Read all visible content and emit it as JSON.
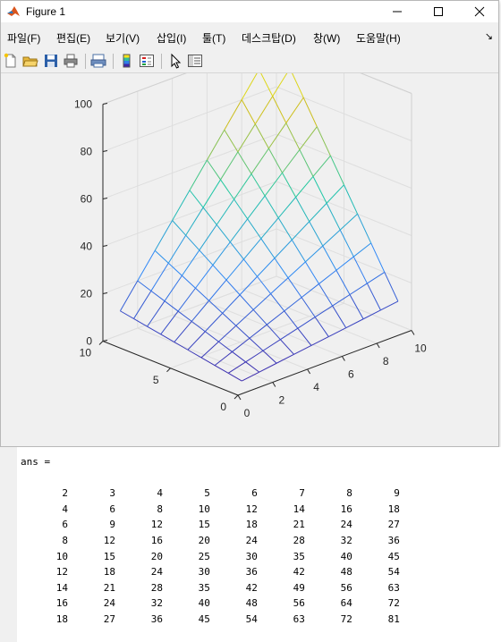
{
  "window": {
    "title": "Figure 1",
    "buttons": [
      "minimize-icon",
      "maximize-icon",
      "close-icon"
    ]
  },
  "menu": {
    "items": [
      "파일(F)",
      "편집(E)",
      "보기(V)",
      "삽입(I)",
      "툴(T)",
      "데스크탑(D)",
      "창(W)",
      "도움말(H)"
    ],
    "dock_glyph": "↘"
  },
  "toolbar": {
    "icons": [
      "new-figure-icon",
      "open-file-icon",
      "save-icon",
      "print-icon",
      "print-preview-icon",
      "colorbar-icon",
      "legend-icon",
      "pointer-icon",
      "property-editor-icon"
    ]
  },
  "plot": {
    "type": "surface-mesh",
    "x_ticks": [
      "0",
      "2",
      "4",
      "6",
      "8",
      "10"
    ],
    "y_ticks": [
      "0",
      "5",
      "10"
    ],
    "z_ticks": [
      "0",
      "20",
      "40",
      "60",
      "80",
      "100"
    ],
    "x_range": [
      0,
      10
    ],
    "y_range": [
      0,
      10
    ],
    "z_range": [
      0,
      100
    ],
    "grid": true,
    "colormap": [
      "#3e26a8",
      "#2e87f7",
      "#1fc8a4",
      "#cbbd1a",
      "#f9fb15"
    ]
  },
  "console": {
    "label": "ans =",
    "rows": [
      [
        2,
        3,
        4,
        5,
        6,
        7,
        8,
        9
      ],
      [
        4,
        6,
        8,
        10,
        12,
        14,
        16,
        18
      ],
      [
        6,
        9,
        12,
        15,
        18,
        21,
        24,
        27
      ],
      [
        8,
        12,
        16,
        20,
        24,
        28,
        32,
        36
      ],
      [
        10,
        15,
        20,
        25,
        30,
        35,
        40,
        45
      ],
      [
        12,
        18,
        24,
        30,
        36,
        42,
        48,
        54
      ],
      [
        14,
        21,
        28,
        35,
        42,
        49,
        56,
        63
      ],
      [
        16,
        24,
        32,
        40,
        48,
        56,
        64,
        72
      ],
      [
        18,
        27,
        36,
        45,
        54,
        63,
        72,
        81
      ]
    ]
  }
}
